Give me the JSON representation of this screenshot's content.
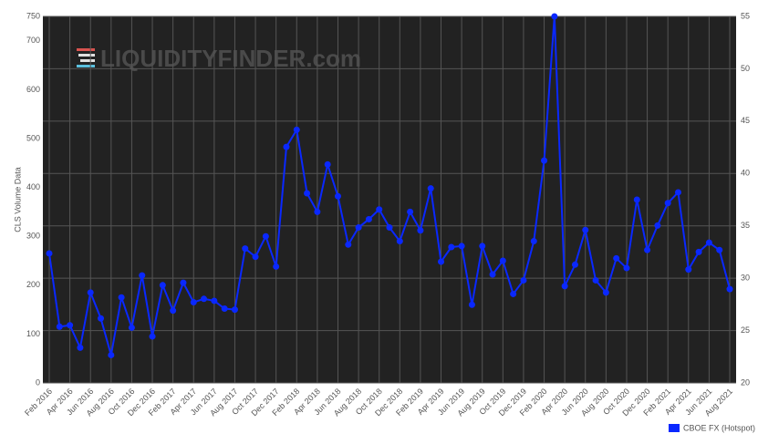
{
  "chart_data": {
    "type": "line",
    "watermark": "LIQUIDITYFINDER.com",
    "y_label": "CLS Volume Data",
    "categories": [
      "Feb 2016",
      null,
      "Apr 2016",
      null,
      "Jun 2016",
      null,
      "Aug 2016",
      null,
      "Oct 2016",
      null,
      "Dec 2016",
      null,
      "Feb 2017",
      null,
      "Apr 2017",
      null,
      "Jun 2017",
      null,
      "Aug 2017",
      null,
      "Oct 2017",
      null,
      "Dec 2017",
      null,
      "Feb 2018",
      null,
      "Apr 2018",
      null,
      "Jun 2018",
      null,
      "Aug 2018",
      null,
      "Oct 2018",
      null,
      "Dec 2018",
      null,
      "Feb 2019",
      null,
      "Apr 2019",
      null,
      "Jun 2019",
      null,
      "Aug 2019",
      null,
      "Oct 2019",
      null,
      "Dec 2019",
      null,
      "Feb 2020",
      null,
      "Apr 2020",
      null,
      "Jun 2020",
      null,
      "Aug 2020",
      null,
      "Oct 2020",
      null,
      "Dec 2020",
      null,
      "Feb 2021",
      null,
      "Apr 2021",
      null,
      "Jun 2021",
      null,
      "Aug 2021"
    ],
    "series": [
      {
        "name": "CBOE FX (Hotspot)",
        "color": "#0a28ff",
        "values": [
          265,
          115,
          118,
          72,
          185,
          132,
          57,
          175,
          113,
          220,
          95,
          200,
          148,
          205,
          165,
          172,
          168,
          152,
          150,
          275,
          258,
          300,
          238,
          483,
          518,
          388,
          350,
          447,
          382,
          283,
          318,
          335,
          355,
          318,
          290,
          350,
          312,
          398,
          248,
          278,
          280,
          160,
          280,
          222,
          250,
          182,
          210,
          290,
          455,
          750,
          198,
          242,
          313,
          210,
          185,
          255,
          235,
          375,
          272,
          322,
          368,
          390,
          232,
          268,
          287,
          272,
          192
        ]
      }
    ],
    "ylim": [
      0,
      750
    ],
    "yticks": [
      0,
      100,
      200,
      300,
      400,
      500,
      600,
      700,
      750
    ],
    "y2lim": [
      20,
      55
    ],
    "y2ticks": [
      20,
      25,
      30,
      35,
      40,
      45,
      50,
      55
    ],
    "grid": true
  }
}
